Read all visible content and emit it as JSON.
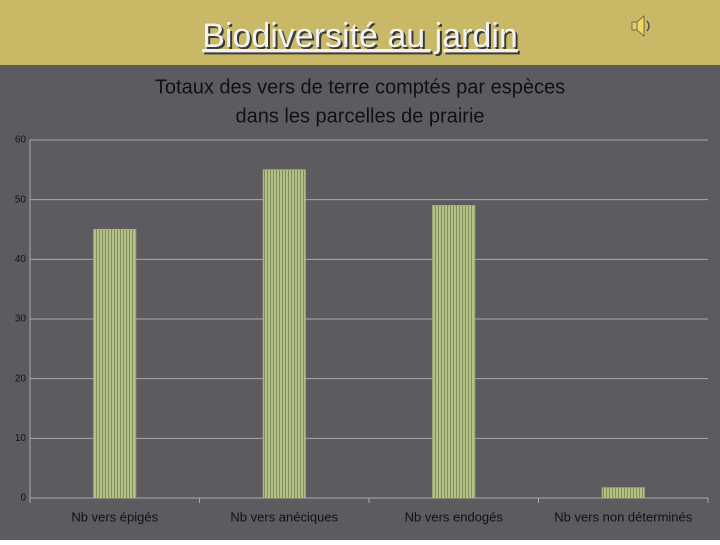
{
  "header": {
    "title": "Biodiversité au jardin"
  },
  "chart_data": {
    "type": "bar",
    "title": "Totaux des vers de terre comptés par espèces",
    "subtitle": "dans les parcelles de prairie",
    "categories": [
      "Nb vers épigés",
      "Nb vers anéciques",
      "Nb vers endogés",
      "Nb vers non déterminés"
    ],
    "values": [
      45,
      55,
      49,
      1.7
    ],
    "color": "#a9b77c",
    "ylim": [
      0,
      60
    ],
    "yticks": [
      0,
      10,
      20,
      30,
      40,
      50,
      60
    ],
    "grid": true
  }
}
